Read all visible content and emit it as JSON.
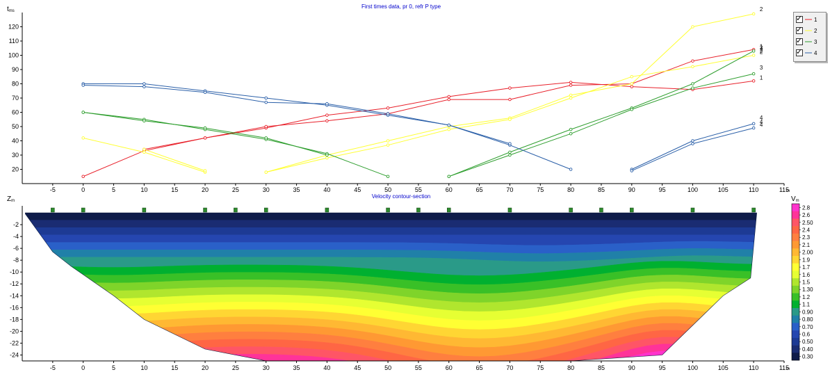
{
  "chart_data": [
    {
      "type": "line",
      "title": "First times data, pr 0, refr P type",
      "ylabel": "t",
      "yunit": "ms",
      "xunit": "m",
      "xlim": [
        -10,
        115
      ],
      "ylim": [
        10,
        130
      ],
      "xticks": [
        "-5",
        "0",
        "5",
        "10",
        "15",
        "20",
        "25",
        "30",
        "35",
        "40",
        "45",
        "50",
        "55",
        "60",
        "65",
        "70",
        "75",
        "80",
        "85",
        "90",
        "95",
        "100",
        "105",
        "110",
        "115"
      ],
      "yticks": [
        "20",
        "30",
        "40",
        "50",
        "60",
        "70",
        "80",
        "90",
        "100",
        "110",
        "120"
      ],
      "legend": [
        "1",
        "2",
        "3",
        "4"
      ],
      "colors": {
        "1": "#e8202a",
        "2": "#ffff33",
        "3": "#2e9e2e",
        "4": "#2a5fa8"
      },
      "curve_labels": [
        "1",
        "2",
        "3",
        "4",
        "1",
        "2",
        "3",
        "4",
        "4",
        "2"
      ],
      "series": [
        {
          "name": "1",
          "segments": [
            [
              [
                0,
                15
              ],
              [
                10,
                33
              ],
              [
                20,
                42
              ],
              [
                30,
                49
              ],
              [
                40,
                58
              ],
              [
                50,
                63
              ],
              [
                60,
                71
              ],
              [
                70,
                77
              ],
              [
                80,
                81
              ],
              [
                90,
                78
              ],
              [
                100,
                76
              ],
              [
                110,
                82
              ]
            ],
            [
              [
                10,
                34
              ],
              [
                20,
                42
              ],
              [
                30,
                50
              ],
              [
                40,
                54
              ],
              [
                50,
                59
              ],
              [
                60,
                69
              ],
              [
                70,
                69
              ],
              [
                80,
                79
              ],
              [
                90,
                80
              ],
              [
                100,
                96
              ],
              [
                110,
                104
              ]
            ]
          ]
        },
        {
          "name": "2",
          "segments": [
            [
              [
                0,
                42
              ],
              [
                10,
                32
              ],
              [
                20,
                18
              ]
            ],
            [
              [
                10,
                34
              ],
              [
                20,
                19
              ]
            ],
            [
              [
                30,
                18
              ],
              [
                40,
                30
              ],
              [
                50,
                40
              ],
              [
                60,
                50
              ],
              [
                70,
                56
              ],
              [
                80,
                72
              ],
              [
                90,
                80
              ],
              [
                100,
                120
              ],
              [
                110,
                129
              ]
            ],
            [
              [
                30,
                18
              ],
              [
                40,
                28
              ],
              [
                50,
                37
              ],
              [
                60,
                48
              ],
              [
                70,
                55
              ],
              [
                80,
                70
              ],
              [
                90,
                85
              ],
              [
                100,
                92
              ],
              [
                110,
                100
              ]
            ]
          ]
        },
        {
          "name": "3",
          "segments": [
            [
              [
                0,
                60
              ],
              [
                10,
                55
              ],
              [
                20,
                48
              ],
              [
                30,
                41
              ],
              [
                40,
                31
              ],
              [
                50,
                15
              ]
            ],
            [
              [
                0,
                60
              ],
              [
                10,
                54
              ],
              [
                20,
                49
              ],
              [
                30,
                42
              ],
              [
                40,
                30
              ]
            ],
            [
              [
                60,
                15
              ],
              [
                70,
                32
              ],
              [
                80,
                48
              ],
              [
                90,
                63
              ],
              [
                100,
                80
              ],
              [
                110,
                103
              ]
            ],
            [
              [
                60,
                15
              ],
              [
                70,
                30
              ],
              [
                80,
                45
              ],
              [
                90,
                62
              ],
              [
                100,
                77
              ],
              [
                110,
                87
              ]
            ]
          ]
        },
        {
          "name": "4",
          "segments": [
            [
              [
                0,
                80
              ],
              [
                10,
                80
              ],
              [
                20,
                75
              ],
              [
                30,
                70
              ],
              [
                40,
                65
              ],
              [
                50,
                58
              ],
              [
                60,
                51
              ],
              [
                70,
                37
              ],
              [
                80,
                20
              ]
            ],
            [
              [
                0,
                79
              ],
              [
                10,
                78
              ],
              [
                20,
                74
              ],
              [
                30,
                67
              ],
              [
                40,
                66
              ],
              [
                50,
                59
              ],
              [
                60,
                51
              ],
              [
                70,
                38
              ]
            ],
            [
              [
                90,
                20
              ],
              [
                100,
                40
              ],
              [
                110,
                52
              ]
            ],
            [
              [
                90,
                19
              ],
              [
                100,
                38
              ],
              [
                110,
                49
              ]
            ]
          ]
        }
      ]
    },
    {
      "type": "heatmap",
      "title": "Velocity contour-section",
      "ylabel": "Z",
      "yunit": "m",
      "xunit": "m",
      "colorbar_label": "V",
      "colorbar_unit": "m",
      "xlim": [
        -10,
        115
      ],
      "ylim": [
        -25,
        0
      ],
      "xticks": [
        "-5",
        "0",
        "5",
        "10",
        "15",
        "20",
        "25",
        "30",
        "35",
        "40",
        "45",
        "50",
        "55",
        "60",
        "65",
        "70",
        "75",
        "80",
        "85",
        "90",
        "95",
        "100",
        "105",
        "110",
        "115"
      ],
      "yticks": [
        "-2",
        "-4",
        "-6",
        "-8",
        "-10",
        "-12",
        "-14",
        "-16",
        "-18",
        "-20",
        "-22",
        "-24"
      ],
      "colorbar_values": [
        "2.8",
        "2.6",
        "2.50",
        "2.4",
        "2.3",
        "2.1",
        "2.00",
        "1.9",
        "1.7",
        "1.6",
        "1.5",
        "1.30",
        "1.2",
        "1.1",
        "0.90",
        "0.80",
        "0.70",
        "0.6",
        "0.50",
        "0.40",
        "0.30"
      ],
      "colorbar_colors": [
        "#ff33cc",
        "#ff3399",
        "#ff5566",
        "#ff6644",
        "#ff7f3f",
        "#ff9933",
        "#ffb833",
        "#ffd633",
        "#ffff33",
        "#e6ff33",
        "#b0e62e",
        "#7fd42a",
        "#39c027",
        "#00b030",
        "#2a9a88",
        "#2080a8",
        "#2a60c8",
        "#2546b0",
        "#1d3a94",
        "#1a2c72",
        "#0f1c4a"
      ],
      "geophones_x": [
        -5,
        0,
        10,
        20,
        25,
        30,
        40,
        50,
        55,
        60,
        70,
        80,
        85,
        90,
        100,
        110
      ]
    }
  ]
}
